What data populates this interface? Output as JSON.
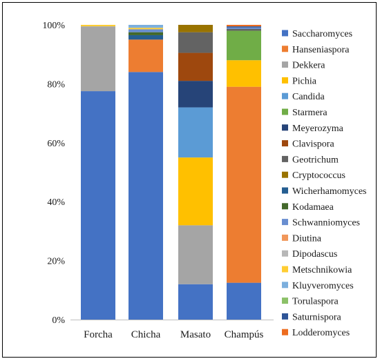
{
  "chart_data": {
    "type": "bar",
    "stacked": true,
    "categories": [
      "Forcha",
      "Chicha",
      "Masato",
      "Champús"
    ],
    "y_ticks": [
      "0%",
      "20%",
      "40%",
      "60%",
      "80%",
      "100%"
    ],
    "ylim": [
      0,
      100
    ],
    "grid": false,
    "legend_position": "right",
    "series": [
      {
        "name": "Saccharomyces",
        "color": "#4472C4",
        "values": [
          77.5,
          84.0,
          12.0,
          12.5
        ]
      },
      {
        "name": "Hanseniaspora",
        "color": "#ED7D31",
        "values": [
          0,
          11.0,
          0,
          66.5
        ]
      },
      {
        "name": "Dekkera",
        "color": "#A5A5A5",
        "values": [
          22.0,
          0,
          20.0,
          0
        ]
      },
      {
        "name": "Pichia",
        "color": "#FFC000",
        "values": [
          0,
          0,
          23.0,
          9.0
        ]
      },
      {
        "name": "Candida",
        "color": "#5B9BD5",
        "values": [
          0,
          0,
          17.0,
          0
        ]
      },
      {
        "name": "Starmera",
        "color": "#70AD47",
        "values": [
          0,
          0,
          0,
          10.0
        ]
      },
      {
        "name": "Meyerozyma",
        "color": "#264478",
        "values": [
          0,
          0,
          9.0,
          0
        ]
      },
      {
        "name": "Clavispora",
        "color": "#9E480E",
        "values": [
          0,
          0,
          9.5,
          0
        ]
      },
      {
        "name": "Geotrichum",
        "color": "#636363",
        "values": [
          0,
          0,
          7.0,
          0.6
        ]
      },
      {
        "name": "Cryptococcus",
        "color": "#997300",
        "values": [
          0,
          0,
          2.5,
          0
        ]
      },
      {
        "name": "Wicherhamomyces",
        "color": "#255E91",
        "values": [
          0,
          1.5,
          0,
          0
        ]
      },
      {
        "name": "Kodamaea",
        "color": "#43682B",
        "values": [
          0,
          1.0,
          0,
          0
        ]
      },
      {
        "name": "Schwanniomyces",
        "color": "#698ED0",
        "values": [
          0,
          1.0,
          0,
          0.5
        ]
      },
      {
        "name": "Diutina",
        "color": "#F1975A",
        "values": [
          0,
          0,
          0,
          0
        ]
      },
      {
        "name": "Dipodascus",
        "color": "#B7B7B7",
        "values": [
          0,
          0,
          0,
          0
        ]
      },
      {
        "name": "Metschnikowia",
        "color": "#FFCD33",
        "values": [
          0.5,
          0.5,
          0,
          0
        ]
      },
      {
        "name": "Kluyveromyces",
        "color": "#7CAFDD",
        "values": [
          0,
          1.0,
          0,
          0
        ]
      },
      {
        "name": "Torulaspora",
        "color": "#8CC168",
        "values": [
          0,
          0,
          0,
          0
        ]
      },
      {
        "name": "Saturnispora",
        "color": "#2E5597",
        "values": [
          0,
          0,
          0,
          0.4
        ]
      },
      {
        "name": "Lodderomyces",
        "color": "#ED6C1F",
        "values": [
          0,
          0,
          0,
          0.5
        ]
      }
    ]
  }
}
